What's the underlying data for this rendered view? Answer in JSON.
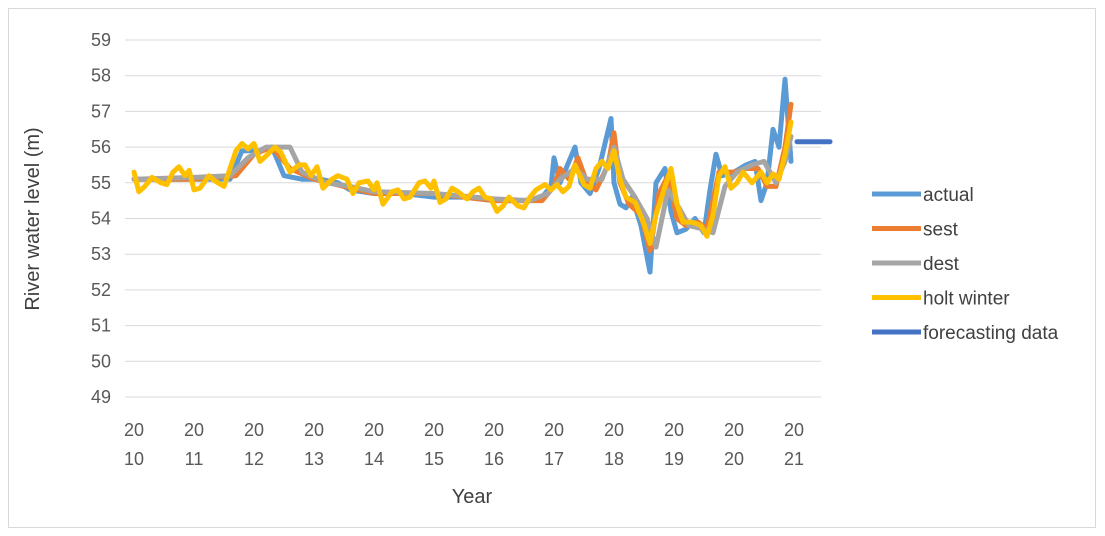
{
  "chart_data": {
    "type": "line",
    "title": "",
    "xlabel": "Year",
    "ylabel": "River water level (m)",
    "ylim": [
      49,
      59
    ],
    "yticks": [
      "49",
      "50",
      "51",
      "52",
      "53",
      "54",
      "55",
      "56",
      "57",
      "58",
      "59"
    ],
    "xticks": [
      {
        "top": "20",
        "bottom": "10",
        "year": 2010
      },
      {
        "top": "20",
        "bottom": "11",
        "year": 2011
      },
      {
        "top": "20",
        "bottom": "12",
        "year": 2012
      },
      {
        "top": "20",
        "bottom": "13",
        "year": 2013
      },
      {
        "top": "20",
        "bottom": "14",
        "year": 2014
      },
      {
        "top": "20",
        "bottom": "15",
        "year": 2015
      },
      {
        "top": "20",
        "bottom": "16",
        "year": 2016
      },
      {
        "top": "20",
        "bottom": "17",
        "year": 2017
      },
      {
        "top": "20",
        "bottom": "18",
        "year": 2018
      },
      {
        "top": "20",
        "bottom": "19",
        "year": 2019
      },
      {
        "top": "20",
        "bottom": "20",
        "year": 2020
      },
      {
        "top": "20",
        "bottom": "21",
        "year": 2021
      }
    ],
    "xlim": [
      2010,
      2021.6
    ],
    "grid": true,
    "legend_position": "right",
    "series": [
      {
        "name": "actual",
        "color": "#5b9bd5",
        "points": [
          [
            2010.0,
            55.1
          ],
          [
            2010.3,
            55.1
          ],
          [
            2010.6,
            55.1
          ],
          [
            2011.0,
            55.1
          ],
          [
            2011.3,
            55.1
          ],
          [
            2011.6,
            55.1
          ],
          [
            2011.8,
            55.9
          ],
          [
            2012.1,
            55.9
          ],
          [
            2012.3,
            56.0
          ],
          [
            2012.5,
            55.2
          ],
          [
            2012.8,
            55.1
          ],
          [
            2013.1,
            55.1
          ],
          [
            2013.4,
            55.0
          ],
          [
            2013.6,
            54.8
          ],
          [
            2014.0,
            54.7
          ],
          [
            2014.5,
            54.7
          ],
          [
            2015.0,
            54.6
          ],
          [
            2015.5,
            54.6
          ],
          [
            2016.0,
            54.5
          ],
          [
            2016.5,
            54.5
          ],
          [
            2016.8,
            54.6
          ],
          [
            2016.95,
            54.9
          ],
          [
            2017.0,
            55.7
          ],
          [
            2017.1,
            55.0
          ],
          [
            2017.25,
            55.6
          ],
          [
            2017.35,
            56.0
          ],
          [
            2017.45,
            55.0
          ],
          [
            2017.6,
            54.7
          ],
          [
            2017.75,
            55.4
          ],
          [
            2017.95,
            56.8
          ],
          [
            2018.0,
            55.0
          ],
          [
            2018.1,
            54.4
          ],
          [
            2018.2,
            54.3
          ],
          [
            2018.3,
            54.6
          ],
          [
            2018.45,
            53.8
          ],
          [
            2018.6,
            52.5
          ],
          [
            2018.7,
            55.0
          ],
          [
            2018.85,
            55.4
          ],
          [
            2018.95,
            54.2
          ],
          [
            2019.05,
            53.6
          ],
          [
            2019.2,
            53.7
          ],
          [
            2019.35,
            54.0
          ],
          [
            2019.5,
            53.6
          ],
          [
            2019.6,
            54.8
          ],
          [
            2019.7,
            55.8
          ],
          [
            2019.8,
            55.2
          ],
          [
            2020.0,
            55.3
          ],
          [
            2020.2,
            55.5
          ],
          [
            2020.35,
            55.6
          ],
          [
            2020.45,
            54.5
          ],
          [
            2020.55,
            55.0
          ],
          [
            2020.65,
            56.5
          ],
          [
            2020.75,
            56.0
          ],
          [
            2020.85,
            57.9
          ],
          [
            2020.95,
            55.6
          ]
        ]
      },
      {
        "name": "sest",
        "color": "#ed7d31",
        "points": [
          [
            2010.0,
            55.1
          ],
          [
            2011.0,
            55.1
          ],
          [
            2011.7,
            55.2
          ],
          [
            2012.0,
            55.8
          ],
          [
            2012.3,
            56.0
          ],
          [
            2012.6,
            55.4
          ],
          [
            2013.0,
            55.1
          ],
          [
            2013.5,
            54.9
          ],
          [
            2014.0,
            54.7
          ],
          [
            2015.0,
            54.7
          ],
          [
            2016.0,
            54.5
          ],
          [
            2016.8,
            54.5
          ],
          [
            2017.0,
            54.9
          ],
          [
            2017.1,
            55.4
          ],
          [
            2017.25,
            55.1
          ],
          [
            2017.4,
            55.7
          ],
          [
            2017.55,
            55.0
          ],
          [
            2017.7,
            54.8
          ],
          [
            2017.9,
            55.5
          ],
          [
            2018.0,
            56.4
          ],
          [
            2018.1,
            55.0
          ],
          [
            2018.25,
            54.4
          ],
          [
            2018.45,
            54.1
          ],
          [
            2018.6,
            53.1
          ],
          [
            2018.75,
            54.7
          ],
          [
            2018.9,
            55.2
          ],
          [
            2019.05,
            54.0
          ],
          [
            2019.2,
            53.8
          ],
          [
            2019.4,
            53.9
          ],
          [
            2019.55,
            53.7
          ],
          [
            2019.75,
            55.3
          ],
          [
            2020.0,
            55.3
          ],
          [
            2020.2,
            55.4
          ],
          [
            2020.4,
            55.4
          ],
          [
            2020.55,
            54.9
          ],
          [
            2020.7,
            54.9
          ],
          [
            2020.85,
            56.0
          ],
          [
            2020.95,
            57.2
          ]
        ]
      },
      {
        "name": "dest",
        "color": "#a5a5a5",
        "points": [
          [
            2010.0,
            55.1
          ],
          [
            2011.0,
            55.15
          ],
          [
            2011.6,
            55.2
          ],
          [
            2011.9,
            55.7
          ],
          [
            2012.2,
            56.0
          ],
          [
            2012.6,
            56.0
          ],
          [
            2012.8,
            55.3
          ],
          [
            2013.2,
            55.0
          ],
          [
            2013.6,
            54.9
          ],
          [
            2014.0,
            54.75
          ],
          [
            2015.0,
            54.7
          ],
          [
            2016.0,
            54.55
          ],
          [
            2016.6,
            54.5
          ],
          [
            2016.9,
            54.7
          ],
          [
            2017.1,
            55.1
          ],
          [
            2017.35,
            55.4
          ],
          [
            2017.55,
            55.1
          ],
          [
            2017.8,
            55.1
          ],
          [
            2018.0,
            56.0
          ],
          [
            2018.15,
            55.1
          ],
          [
            2018.35,
            54.6
          ],
          [
            2018.55,
            54.0
          ],
          [
            2018.7,
            53.2
          ],
          [
            2018.9,
            54.8
          ],
          [
            2019.05,
            54.4
          ],
          [
            2019.25,
            53.8
          ],
          [
            2019.5,
            53.7
          ],
          [
            2019.65,
            53.6
          ],
          [
            2019.85,
            54.9
          ],
          [
            2020.05,
            55.3
          ],
          [
            2020.3,
            55.5
          ],
          [
            2020.5,
            55.6
          ],
          [
            2020.7,
            55.0
          ],
          [
            2020.85,
            55.6
          ],
          [
            2020.95,
            56.3
          ]
        ]
      },
      {
        "name": "holt winter",
        "color": "#ffc000",
        "points": [
          [
            2010.0,
            55.3
          ],
          [
            2010.08,
            54.75
          ],
          [
            2010.18,
            54.9
          ],
          [
            2010.3,
            55.15
          ],
          [
            2010.45,
            55.0
          ],
          [
            2010.55,
            54.95
          ],
          [
            2010.65,
            55.3
          ],
          [
            2010.75,
            55.45
          ],
          [
            2010.85,
            55.2
          ],
          [
            2010.92,
            55.35
          ],
          [
            2011.0,
            54.8
          ],
          [
            2011.1,
            54.85
          ],
          [
            2011.25,
            55.2
          ],
          [
            2011.35,
            55.05
          ],
          [
            2011.45,
            54.95
          ],
          [
            2011.5,
            54.9
          ],
          [
            2011.6,
            55.4
          ],
          [
            2011.7,
            55.9
          ],
          [
            2011.8,
            56.1
          ],
          [
            2011.9,
            55.95
          ],
          [
            2012.0,
            56.1
          ],
          [
            2012.1,
            55.6
          ],
          [
            2012.2,
            55.75
          ],
          [
            2012.35,
            56.0
          ],
          [
            2012.45,
            55.85
          ],
          [
            2012.6,
            55.3
          ],
          [
            2012.75,
            55.5
          ],
          [
            2012.85,
            55.5
          ],
          [
            2012.95,
            55.2
          ],
          [
            2013.05,
            55.45
          ],
          [
            2013.15,
            54.85
          ],
          [
            2013.3,
            55.1
          ],
          [
            2013.4,
            55.2
          ],
          [
            2013.55,
            55.1
          ],
          [
            2013.65,
            54.7
          ],
          [
            2013.75,
            55.0
          ],
          [
            2013.9,
            55.05
          ],
          [
            2014.0,
            54.8
          ],
          [
            2014.05,
            55.0
          ],
          [
            2014.15,
            54.4
          ],
          [
            2014.3,
            54.75
          ],
          [
            2014.4,
            54.8
          ],
          [
            2014.5,
            54.55
          ],
          [
            2014.6,
            54.6
          ],
          [
            2014.75,
            55.0
          ],
          [
            2014.85,
            55.05
          ],
          [
            2014.95,
            54.85
          ],
          [
            2015.0,
            55.05
          ],
          [
            2015.1,
            54.45
          ],
          [
            2015.2,
            54.55
          ],
          [
            2015.3,
            54.85
          ],
          [
            2015.4,
            54.75
          ],
          [
            2015.55,
            54.55
          ],
          [
            2015.65,
            54.75
          ],
          [
            2015.75,
            54.85
          ],
          [
            2015.85,
            54.6
          ],
          [
            2015.95,
            54.55
          ],
          [
            2016.05,
            54.2
          ],
          [
            2016.15,
            54.35
          ],
          [
            2016.25,
            54.6
          ],
          [
            2016.4,
            54.35
          ],
          [
            2016.5,
            54.3
          ],
          [
            2016.6,
            54.6
          ],
          [
            2016.7,
            54.8
          ],
          [
            2016.85,
            54.95
          ],
          [
            2016.95,
            54.8
          ],
          [
            2017.05,
            54.95
          ],
          [
            2017.15,
            54.75
          ],
          [
            2017.25,
            54.9
          ],
          [
            2017.35,
            55.5
          ],
          [
            2017.5,
            54.95
          ],
          [
            2017.6,
            54.85
          ],
          [
            2017.7,
            55.4
          ],
          [
            2017.8,
            55.6
          ],
          [
            2017.9,
            55.4
          ],
          [
            2018.0,
            55.9
          ],
          [
            2018.1,
            55.1
          ],
          [
            2018.2,
            54.6
          ],
          [
            2018.35,
            54.45
          ],
          [
            2018.5,
            53.85
          ],
          [
            2018.6,
            53.3
          ],
          [
            2018.7,
            54.1
          ],
          [
            2018.85,
            54.9
          ],
          [
            2018.95,
            55.4
          ],
          [
            2019.05,
            54.4
          ],
          [
            2019.15,
            53.9
          ],
          [
            2019.3,
            53.9
          ],
          [
            2019.45,
            53.8
          ],
          [
            2019.55,
            53.5
          ],
          [
            2019.65,
            54.1
          ],
          [
            2019.75,
            55.2
          ],
          [
            2019.85,
            55.45
          ],
          [
            2019.95,
            54.85
          ],
          [
            2020.05,
            55.0
          ],
          [
            2020.15,
            55.3
          ],
          [
            2020.3,
            55.0
          ],
          [
            2020.45,
            55.3
          ],
          [
            2020.55,
            55.0
          ],
          [
            2020.65,
            55.25
          ],
          [
            2020.75,
            55.1
          ],
          [
            2020.85,
            55.8
          ],
          [
            2020.95,
            56.7
          ]
        ]
      },
      {
        "name": "forecasting data",
        "color": "#4472c4",
        "points": [
          [
            2021.05,
            56.15
          ],
          [
            2021.6,
            56.15
          ]
        ]
      }
    ]
  }
}
